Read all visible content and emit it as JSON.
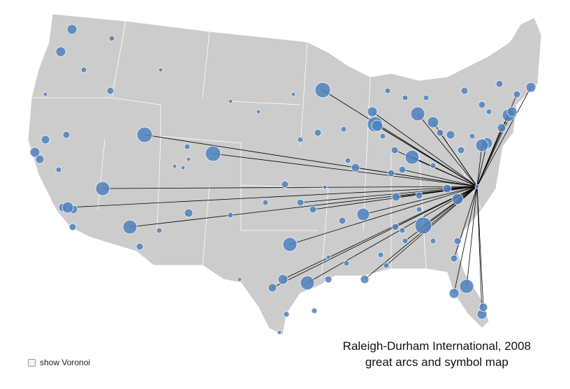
{
  "caption": {
    "title": "Raleigh-Durham International, 2008",
    "subtitle": "great arcs and symbol map"
  },
  "controls": {
    "voronoi_label": "show Voronoi"
  }
}
